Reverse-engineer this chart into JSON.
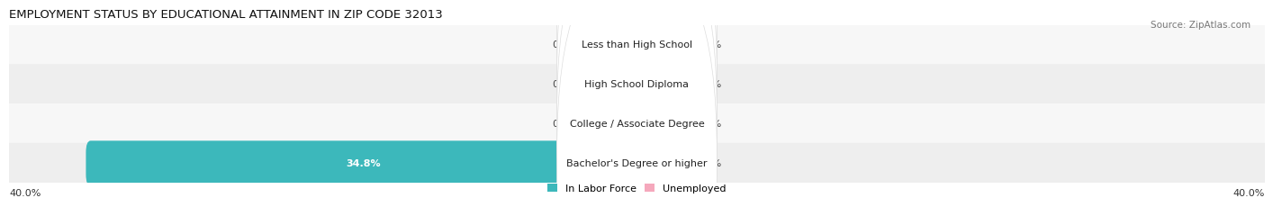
{
  "title": "EMPLOYMENT STATUS BY EDUCATIONAL ATTAINMENT IN ZIP CODE 32013",
  "source": "Source: ZipAtlas.com",
  "categories": [
    "Less than High School",
    "High School Diploma",
    "College / Associate Degree",
    "Bachelor's Degree or higher"
  ],
  "in_labor_force": [
    0.0,
    0.0,
    0.0,
    34.8
  ],
  "unemployed": [
    0.0,
    0.0,
    0.0,
    0.0
  ],
  "max_val": 40.0,
  "color_labor": "#3cb8bb",
  "color_unemployed": "#f5a8bc",
  "color_row_light": "#f7f7f7",
  "color_row_dark": "#eeeeee",
  "label_axis": "40.0%",
  "title_fontsize": 9.5,
  "source_fontsize": 7.5,
  "value_label_fontsize": 8,
  "category_fontsize": 8,
  "legend_fontsize": 8,
  "min_bar_display": 3.0,
  "bar_height": 0.55
}
